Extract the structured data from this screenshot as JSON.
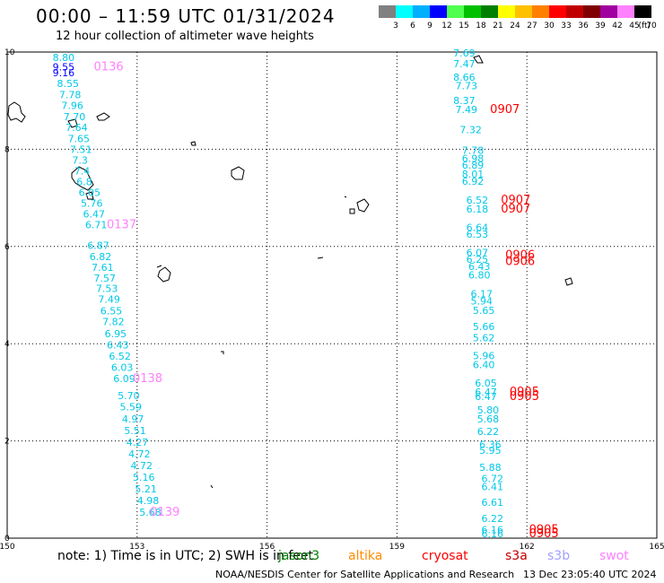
{
  "header": {
    "title": "00:00 – 11:59 UTC 01/31/2024",
    "subtitle": "12 hour collection of altimeter wave heights"
  },
  "legend": {
    "ticks": [
      "3",
      "6",
      "9",
      "12",
      "15",
      "18",
      "21",
      "24",
      "27",
      "30",
      "33",
      "36",
      "39",
      "42",
      "45",
      "70"
    ],
    "unit": "(ft)",
    "colors": [
      "#808080",
      "#00ffff",
      "#00b0ff",
      "#0000ff",
      "#50ff50",
      "#00c000",
      "#008000",
      "#ffff00",
      "#ffc000",
      "#ff8000",
      "#ff0000",
      "#c00000",
      "#800000",
      "#a000a0",
      "#ff80ff",
      "#000000"
    ]
  },
  "map": {
    "x_axis": {
      "min": 150,
      "max": 165,
      "ticks": [
        "150",
        "153",
        "156",
        "159",
        "162",
        "165"
      ]
    },
    "y_axis": {
      "min": 0,
      "max": 10,
      "ticks": [
        "0",
        "2",
        "4",
        "6",
        "8",
        "10"
      ]
    },
    "left_track": {
      "readings": [
        {
          "lon": 151.05,
          "lat": 9.82,
          "v": "8.80",
          "c": "#00c8e8"
        },
        {
          "lon": 151.05,
          "lat": 9.62,
          "v": "9.55",
          "c": "#0000ff"
        },
        {
          "lon": 151.05,
          "lat": 9.5,
          "v": "9.16",
          "c": "#0000ff"
        },
        {
          "lon": 151.15,
          "lat": 9.28,
          "v": "8.55",
          "c": "#00c8e8"
        },
        {
          "lon": 151.2,
          "lat": 9.05,
          "v": "7.78",
          "c": "#00c8e8"
        },
        {
          "lon": 151.25,
          "lat": 8.83,
          "v": "7.96",
          "c": "#00c8e8"
        },
        {
          "lon": 151.3,
          "lat": 8.6,
          "v": "7.70",
          "c": "#00c8e8"
        },
        {
          "lon": 151.35,
          "lat": 8.38,
          "v": "7.64",
          "c": "#00c8e8"
        },
        {
          "lon": 151.4,
          "lat": 8.15,
          "v": "7.65",
          "c": "#00c8e8"
        },
        {
          "lon": 151.45,
          "lat": 7.92,
          "v": "7.51",
          "c": "#00c8e8"
        },
        {
          "lon": 151.5,
          "lat": 7.7,
          "v": "7.3",
          "c": "#00c8e8"
        },
        {
          "lon": 151.55,
          "lat": 7.48,
          "v": "7.4",
          "c": "#00c8e8"
        },
        {
          "lon": 151.6,
          "lat": 7.26,
          "v": "6.8",
          "c": "#00c8e8"
        },
        {
          "lon": 151.65,
          "lat": 7.04,
          "v": "6.05",
          "c": "#00c8e8"
        },
        {
          "lon": 151.7,
          "lat": 6.82,
          "v": "5.76",
          "c": "#00c8e8"
        },
        {
          "lon": 151.75,
          "lat": 6.6,
          "v": "6.47",
          "c": "#00c8e8"
        },
        {
          "lon": 151.8,
          "lat": 6.37,
          "v": "6.71",
          "c": "#00c8e8"
        },
        {
          "lon": 151.85,
          "lat": 5.95,
          "v": "6.87",
          "c": "#00c8e8"
        },
        {
          "lon": 151.9,
          "lat": 5.72,
          "v": "6.82",
          "c": "#00c8e8"
        },
        {
          "lon": 151.95,
          "lat": 5.5,
          "v": "7.61",
          "c": "#00c8e8"
        },
        {
          "lon": 152.0,
          "lat": 5.28,
          "v": "7.57",
          "c": "#00c8e8"
        },
        {
          "lon": 152.05,
          "lat": 5.06,
          "v": "7.53",
          "c": "#00c8e8"
        },
        {
          "lon": 152.1,
          "lat": 4.84,
          "v": "7.49",
          "c": "#00c8e8"
        },
        {
          "lon": 152.15,
          "lat": 4.6,
          "v": "6.55",
          "c": "#00c8e8"
        },
        {
          "lon": 152.2,
          "lat": 4.38,
          "v": "7.82",
          "c": "#00c8e8"
        },
        {
          "lon": 152.25,
          "lat": 4.13,
          "v": "6.95",
          "c": "#00c8e8"
        },
        {
          "lon": 152.3,
          "lat": 3.9,
          "v": "6.43",
          "c": "#00c8e8"
        },
        {
          "lon": 152.35,
          "lat": 3.67,
          "v": "6.52",
          "c": "#00c8e8"
        },
        {
          "lon": 152.4,
          "lat": 3.44,
          "v": "6.03",
          "c": "#00c8e8"
        },
        {
          "lon": 152.45,
          "lat": 3.21,
          "v": "6.09",
          "c": "#00c8e8"
        },
        {
          "lon": 152.55,
          "lat": 2.86,
          "v": "5.70",
          "c": "#00c8e8"
        },
        {
          "lon": 152.6,
          "lat": 2.63,
          "v": "5.59",
          "c": "#00c8e8"
        },
        {
          "lon": 152.65,
          "lat": 2.38,
          "v": "4.97",
          "c": "#00c8e8"
        },
        {
          "lon": 152.7,
          "lat": 2.14,
          "v": "5.51",
          "c": "#00c8e8"
        },
        {
          "lon": 152.75,
          "lat": 1.9,
          "v": "4.27",
          "c": "#00c8e8"
        },
        {
          "lon": 152.8,
          "lat": 1.66,
          "v": "4.72",
          "c": "#00c8e8"
        },
        {
          "lon": 152.85,
          "lat": 1.42,
          "v": "4.72",
          "c": "#00c8e8"
        },
        {
          "lon": 152.9,
          "lat": 1.18,
          "v": "5.16",
          "c": "#00c8e8"
        },
        {
          "lon": 152.95,
          "lat": 0.94,
          "v": "5.21",
          "c": "#00c8e8"
        },
        {
          "lon": 153.0,
          "lat": 0.7,
          "v": "4.98",
          "c": "#00c8e8"
        },
        {
          "lon": 153.05,
          "lat": 0.46,
          "v": "5.68",
          "c": "#00c8e8"
        }
      ],
      "times": [
        {
          "lon": 152.0,
          "lat": 9.62,
          "t": "0136"
        },
        {
          "lon": 152.3,
          "lat": 6.37,
          "t": "0137"
        },
        {
          "lon": 152.9,
          "lat": 3.21,
          "t": "0138"
        },
        {
          "lon": 153.3,
          "lat": 0.46,
          "t": "0139"
        }
      ]
    },
    "right_track": {
      "readings": [
        {
          "lon": 160.3,
          "lat": 9.91,
          "v": "7.69",
          "c": "#00c8e8"
        },
        {
          "lon": 160.3,
          "lat": 9.69,
          "v": "7.47",
          "c": "#00c8e8"
        },
        {
          "lon": 160.3,
          "lat": 9.41,
          "v": "8.66",
          "c": "#00c8e8"
        },
        {
          "lon": 160.35,
          "lat": 9.23,
          "v": "7.73",
          "c": "#00c8e8"
        },
        {
          "lon": 160.3,
          "lat": 8.93,
          "v": "8.37",
          "c": "#00c8e8"
        },
        {
          "lon": 160.35,
          "lat": 8.75,
          "v": "7.49",
          "c": "#00c8e8"
        },
        {
          "lon": 160.45,
          "lat": 8.33,
          "v": "7.32",
          "c": "#00c8e8"
        },
        {
          "lon": 160.5,
          "lat": 7.91,
          "v": "7.78",
          "c": "#00c8e8"
        },
        {
          "lon": 160.5,
          "lat": 7.74,
          "v": "6.98",
          "c": "#00c8e8"
        },
        {
          "lon": 160.5,
          "lat": 7.6,
          "v": "6.89",
          "c": "#00c8e8"
        },
        {
          "lon": 160.5,
          "lat": 7.42,
          "v": "8.01",
          "c": "#00c8e8"
        },
        {
          "lon": 160.5,
          "lat": 7.27,
          "v": "6.92",
          "c": "#00c8e8"
        },
        {
          "lon": 160.6,
          "lat": 6.88,
          "v": "6.52",
          "c": "#00c8e8"
        },
        {
          "lon": 160.6,
          "lat": 6.7,
          "v": "6.18",
          "c": "#00c8e8"
        },
        {
          "lon": 160.6,
          "lat": 6.32,
          "v": "6.64",
          "c": "#00c8e8"
        },
        {
          "lon": 160.6,
          "lat": 6.18,
          "v": "6.53",
          "c": "#00c8e8"
        },
        {
          "lon": 160.6,
          "lat": 5.8,
          "v": "6.07",
          "c": "#00c8e8"
        },
        {
          "lon": 160.6,
          "lat": 5.66,
          "v": "6.25",
          "c": "#00c8e8"
        },
        {
          "lon": 160.65,
          "lat": 5.52,
          "v": "6.43",
          "c": "#00c8e8"
        },
        {
          "lon": 160.65,
          "lat": 5.34,
          "v": "6.80",
          "c": "#00c8e8"
        },
        {
          "lon": 160.7,
          "lat": 4.95,
          "v": "6.17",
          "c": "#00c8e8"
        },
        {
          "lon": 160.7,
          "lat": 4.81,
          "v": "5.94",
          "c": "#00c8e8"
        },
        {
          "lon": 160.75,
          "lat": 4.61,
          "v": "5.65",
          "c": "#00c8e8"
        },
        {
          "lon": 160.75,
          "lat": 4.28,
          "v": "5.66",
          "c": "#00c8e8"
        },
        {
          "lon": 160.75,
          "lat": 4.05,
          "v": "5.62",
          "c": "#00c8e8"
        },
        {
          "lon": 160.75,
          "lat": 3.68,
          "v": "5.96",
          "c": "#00c8e8"
        },
        {
          "lon": 160.75,
          "lat": 3.5,
          "v": "6.40",
          "c": "#00c8e8"
        },
        {
          "lon": 160.8,
          "lat": 3.12,
          "v": "6.05",
          "c": "#00c8e8"
        },
        {
          "lon": 160.8,
          "lat": 2.93,
          "v": "6.47",
          "c": "#00c8e8"
        },
        {
          "lon": 160.8,
          "lat": 2.84,
          "v": "6.47",
          "c": "#00c8e8"
        },
        {
          "lon": 160.85,
          "lat": 2.56,
          "v": "5.80",
          "c": "#00c8e8"
        },
        {
          "lon": 160.85,
          "lat": 2.38,
          "v": "5.68",
          "c": "#00c8e8"
        },
        {
          "lon": 160.85,
          "lat": 2.12,
          "v": "6.22",
          "c": "#00c8e8"
        },
        {
          "lon": 160.9,
          "lat": 1.85,
          "v": "6.36",
          "c": "#00c8e8"
        },
        {
          "lon": 160.9,
          "lat": 1.73,
          "v": "5.95",
          "c": "#00c8e8"
        },
        {
          "lon": 160.9,
          "lat": 1.38,
          "v": "5.88",
          "c": "#00c8e8"
        },
        {
          "lon": 160.95,
          "lat": 1.15,
          "v": "6.72",
          "c": "#00c8e8"
        },
        {
          "lon": 160.95,
          "lat": 0.99,
          "v": "6.41",
          "c": "#00c8e8"
        },
        {
          "lon": 160.95,
          "lat": 0.66,
          "v": "6.61",
          "c": "#00c8e8"
        },
        {
          "lon": 160.95,
          "lat": 0.33,
          "v": "6.22",
          "c": "#00c8e8"
        },
        {
          "lon": 160.95,
          "lat": 0.1,
          "v": "6.16",
          "c": "#00c8e8"
        },
        {
          "lon": 160.95,
          "lat": 0.02,
          "v": "6.16",
          "c": "#00c8e8"
        }
      ],
      "times": [
        {
          "lon": 161.15,
          "lat": 8.75,
          "t": "0907"
        },
        {
          "lon": 161.4,
          "lat": 6.88,
          "t": "0907"
        },
        {
          "lon": 161.4,
          "lat": 6.7,
          "t": "0907"
        },
        {
          "lon": 161.5,
          "lat": 5.75,
          "t": "0906"
        },
        {
          "lon": 161.5,
          "lat": 5.62,
          "t": "0906"
        },
        {
          "lon": 161.6,
          "lat": 2.93,
          "t": "0905"
        },
        {
          "lon": 161.6,
          "lat": 2.84,
          "t": "0905"
        },
        {
          "lon": 162.05,
          "lat": 0.1,
          "t": "0905"
        },
        {
          "lon": 162.05,
          "lat": 0.02,
          "t": "0905"
        }
      ]
    }
  },
  "footer": {
    "note": "note:  1) Time is in UTC; 2) SWH is in feet",
    "missions": [
      {
        "name": "jason3",
        "color": "#008000"
      },
      {
        "name": "altika",
        "color": "#ff8c00"
      },
      {
        "name": "cryosat",
        "color": "#ff0000"
      },
      {
        "name": "s3a",
        "color": "#c00000"
      },
      {
        "name": "s3b",
        "color": "#a0a0ff"
      },
      {
        "name": "swot",
        "color": "#ff80ff"
      }
    ],
    "agency": "NOAA/NESDIS Center for Satellite Applications and Research",
    "generated": "13 Dec 23:05:40 UTC 2024"
  }
}
